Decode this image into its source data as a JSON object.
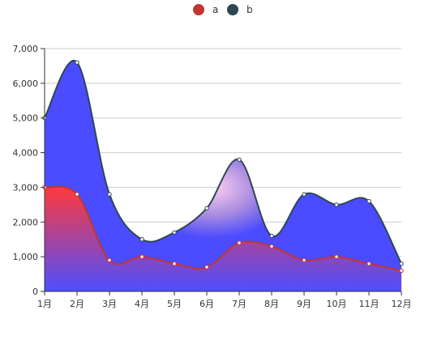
{
  "chart_data": {
    "type": "area",
    "categories": [
      "1月",
      "2月",
      "3月",
      "4月",
      "5月",
      "6月",
      "7月",
      "8月",
      "9月",
      "10月",
      "11月",
      "12月"
    ],
    "series": [
      {
        "name": "a",
        "color": "#c23531",
        "values": [
          3000,
          2800,
          900,
          1000,
          800,
          700,
          1400,
          1300,
          900,
          1000,
          800,
          600
        ]
      },
      {
        "name": "b",
        "color": "#2f4554",
        "values": [
          5000,
          6600,
          2800,
          1500,
          1700,
          2400,
          3800,
          1600,
          2800,
          2500,
          2600,
          800
        ]
      }
    ],
    "yticks": [
      "0",
      "1,000",
      "2,000",
      "3,000",
      "4,000",
      "5,000",
      "6,000",
      "7,000"
    ],
    "ylim": [
      0,
      7000
    ],
    "legend_position": "top-center",
    "grid": true,
    "smooth": true
  }
}
